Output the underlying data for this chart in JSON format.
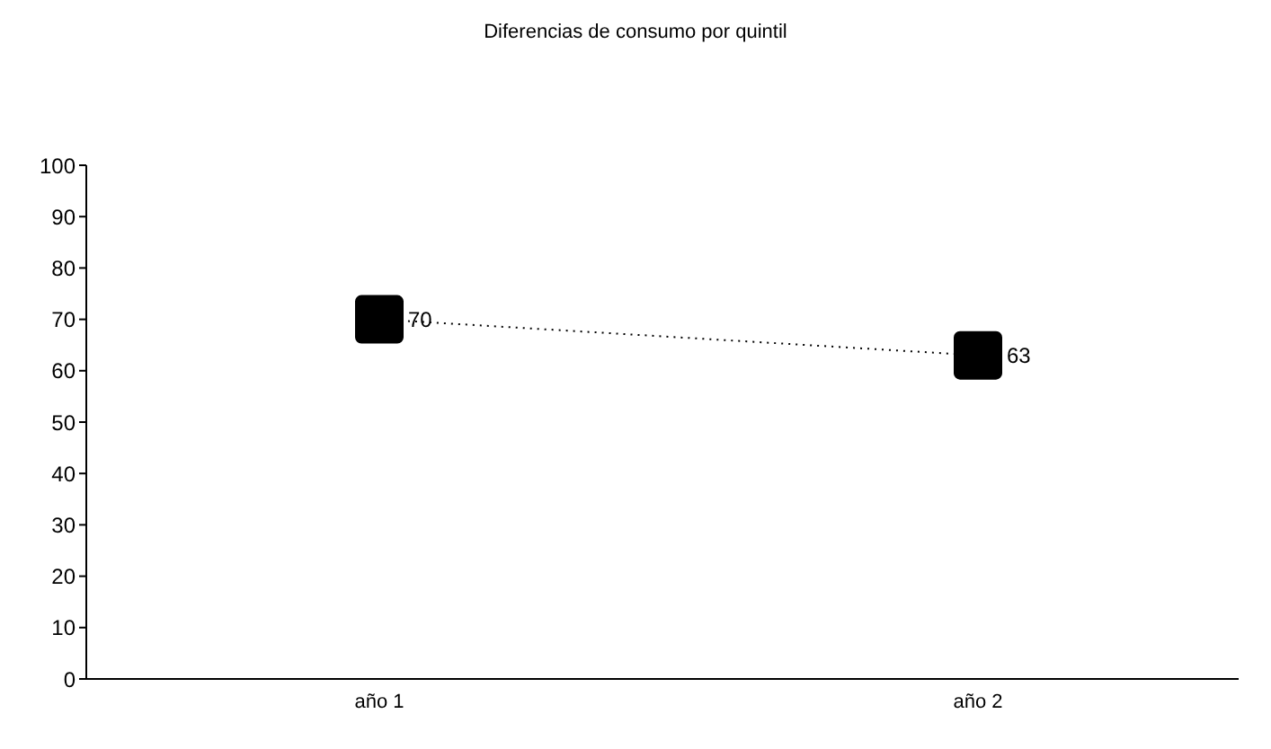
{
  "chart_data": {
    "type": "line",
    "title": "Diferencias de consumo por quintil",
    "categories": [
      "año 1",
      "año 2"
    ],
    "series": [
      {
        "color": "#000000",
        "values": [
          70,
          63
        ]
      }
    ],
    "ylim": [
      0,
      100
    ],
    "yticks": [
      0,
      10,
      20,
      30,
      40,
      50,
      60,
      70,
      80,
      90,
      100
    ],
    "grid": false,
    "marker": "square",
    "line_style": "dotted",
    "data_labels": true
  }
}
